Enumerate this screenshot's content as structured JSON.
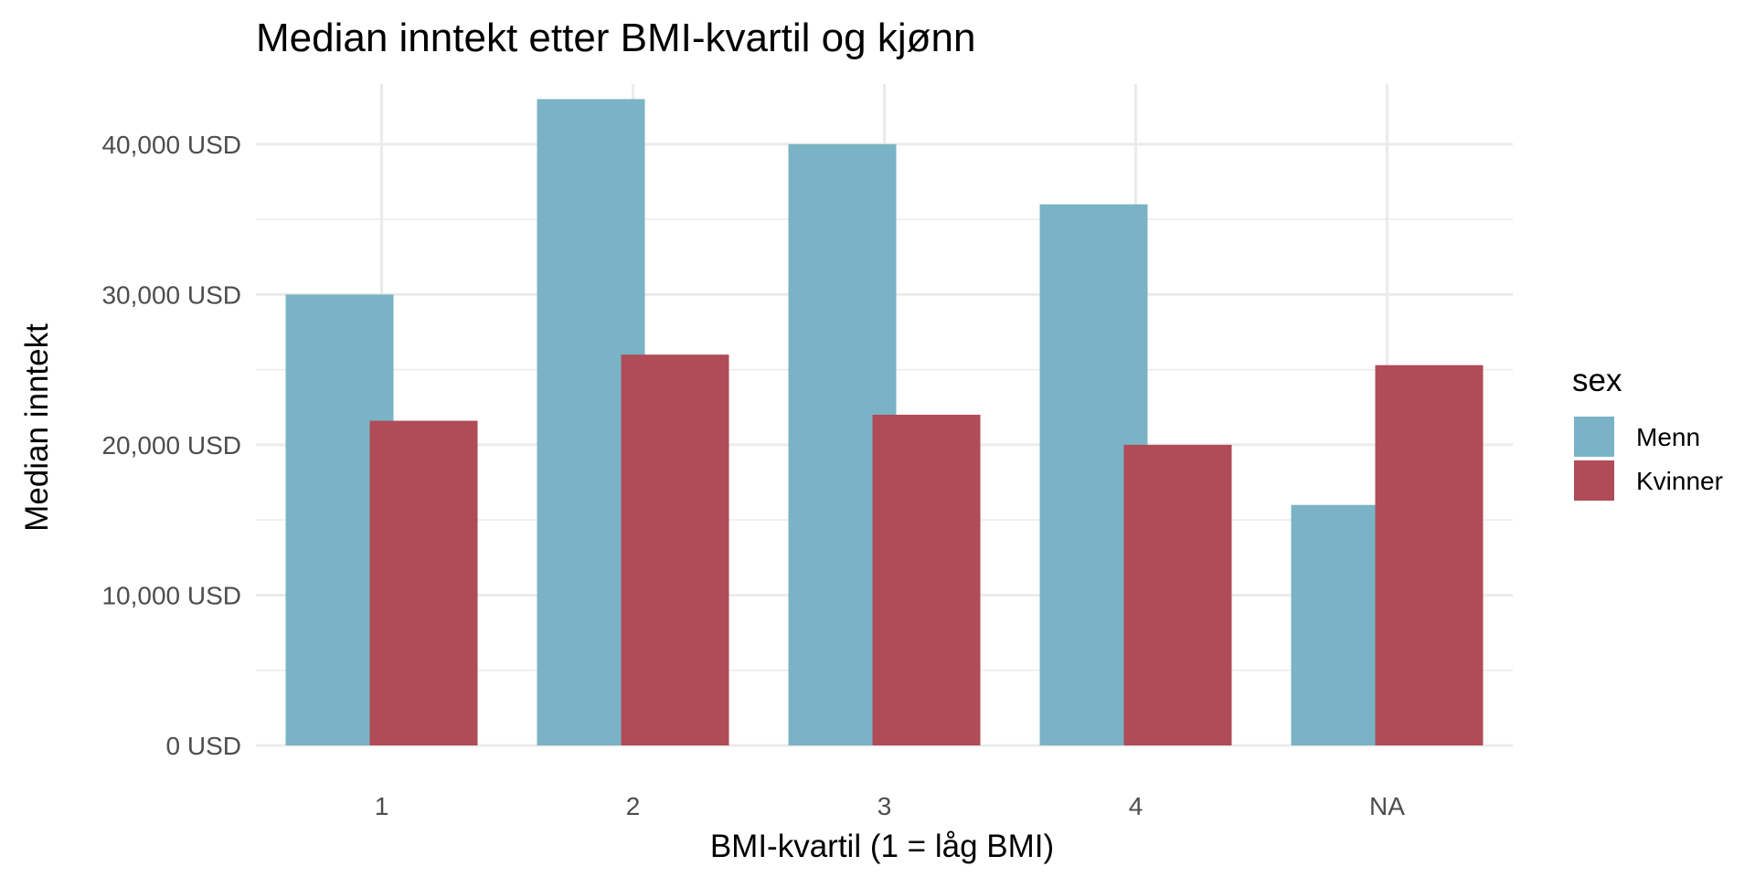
{
  "chart_data": {
    "type": "bar",
    "title": "Median inntekt etter BMI-kvartil og kjønn",
    "xlabel": "BMI-kvartil (1 = låg BMI)",
    "ylabel": "Median inntekt",
    "categories": [
      "1",
      "2",
      "3",
      "4",
      "NA"
    ],
    "ylim": [
      0,
      44000
    ],
    "yticks": [
      0,
      10000,
      20000,
      30000,
      40000
    ],
    "ytick_labels": [
      "0 USD",
      "10,000 USD",
      "20,000 USD",
      "30,000 USD",
      "40,000 USD"
    ],
    "grid": true,
    "legend": {
      "title": "sex",
      "position": "right"
    },
    "series": [
      {
        "name": "Menn",
        "color": "#7AB3C5",
        "values": [
          30000,
          43000,
          40000,
          36000,
          16000
        ]
      },
      {
        "name": "Kvinner",
        "color": "#B04B58",
        "values": [
          21600,
          26000,
          22000,
          20000,
          25300
        ]
      }
    ]
  }
}
